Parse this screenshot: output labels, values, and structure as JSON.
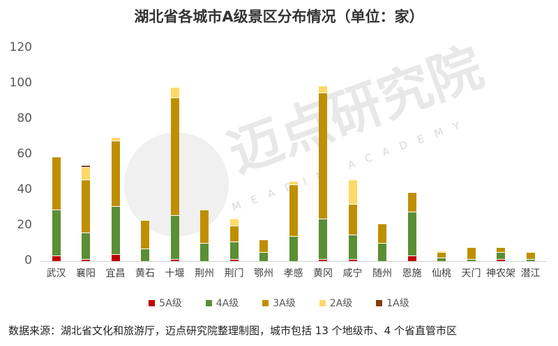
{
  "chart_data": {
    "type": "bar",
    "stacked": true,
    "title": "湖北省各城市A级景区分布情况（单位：家）",
    "xlabel": "",
    "ylabel": "",
    "ylim": [
      0,
      120
    ],
    "yticks": [
      "0",
      "20",
      "40",
      "60",
      "80",
      "100",
      "120"
    ],
    "grid": false,
    "legend_position": "bottom",
    "categories": [
      "武汉",
      "襄阳",
      "宜昌",
      "黄石",
      "十堰",
      "荆州",
      "荆门",
      "鄂州",
      "孝感",
      "黄冈",
      "咸宁",
      "随州",
      "恩施",
      "仙桃",
      "天门",
      "神农架",
      "潜江"
    ],
    "series": [
      {
        "name": "5A级",
        "color": "#C00000",
        "values": [
          3,
          1,
          4,
          0,
          1,
          0,
          1,
          0,
          0,
          1,
          1,
          0,
          3,
          0,
          0,
          1,
          0
        ]
      },
      {
        "name": "4A级",
        "color": "#5A8F34",
        "values": [
          26,
          15,
          27,
          7,
          25,
          10,
          10,
          5,
          14,
          23,
          14,
          10,
          25,
          2,
          1,
          4,
          1
        ]
      },
      {
        "name": "3A级",
        "color": "#BF8F00",
        "values": [
          30,
          30,
          37,
          16,
          66,
          19,
          9,
          7,
          29,
          71,
          17,
          11,
          11,
          3,
          7,
          3,
          4
        ]
      },
      {
        "name": "2A级",
        "color": "#FFD966",
        "values": [
          0,
          7,
          2,
          0,
          6,
          0,
          4,
          0,
          2,
          4,
          14,
          0,
          0,
          1,
          0,
          0,
          0
        ]
      },
      {
        "name": "1A级",
        "color": "#843C0C",
        "values": [
          0,
          1,
          0,
          0,
          0,
          0,
          0,
          0,
          0,
          0,
          0,
          0,
          0,
          0,
          0,
          0,
          0
        ]
      }
    ]
  },
  "title": "湖北省各城市A级景区分布情况（单位：家）",
  "legend": [
    "5A级",
    "4A级",
    "3A级",
    "2A级",
    "1A级"
  ],
  "source": "数据来源：湖北省文化和旅游厅，迈点研究院整理制图，城市包括 13 个地级市、4 个省直管市区",
  "watermark": {
    "text": "迈点研究院",
    "sub": "MEADIN ACADEMY"
  }
}
